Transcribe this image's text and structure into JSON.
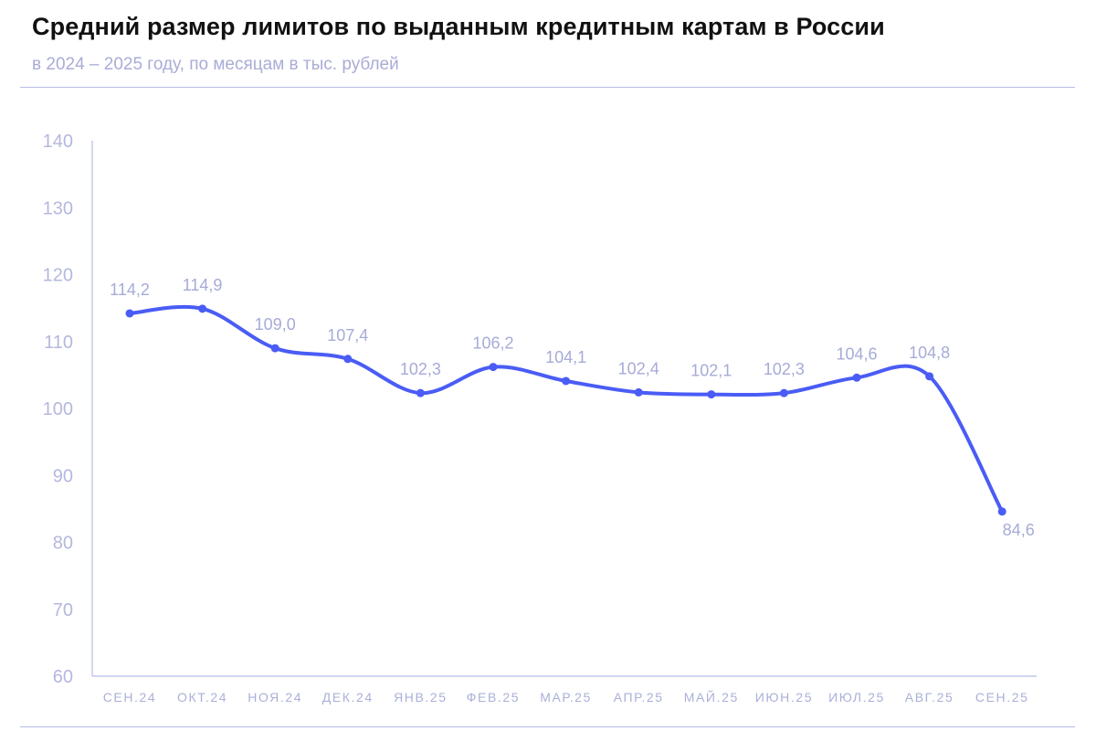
{
  "header": {
    "title": "Средний размер лимитов по выданным кредитным картам в России",
    "subtitle": "в 2024 – 2025 году, по месяцам в тыс. рублей"
  },
  "colors": {
    "line": "#4a5cf5",
    "axis": "#b7bbe6",
    "tick_text": "#b4b8de",
    "data_label": "#a6abd8"
  },
  "chart_data": {
    "type": "line",
    "title": "Средний размер лимитов по выданным кредитным картам в России",
    "subtitle": "в 2024 – 2025 году, по месяцам в тыс. рублей",
    "categories": [
      "СЕН.24",
      "ОКТ.24",
      "НОЯ.24",
      "ДЕК.24",
      "ЯНВ.25",
      "ФЕВ.25",
      "МАР.25",
      "АПР.25",
      "МАЙ.25",
      "ИЮН.25",
      "ИЮЛ.25",
      "АВГ.25",
      "СЕН.25"
    ],
    "values": [
      114.2,
      114.9,
      109.0,
      107.4,
      102.3,
      106.2,
      104.1,
      102.4,
      102.1,
      102.3,
      104.6,
      104.8,
      84.6
    ],
    "data_labels": [
      "114,2",
      "114,9",
      "109,0",
      "107,4",
      "102,3",
      "106,2",
      "104,1",
      "102,4",
      "102,1",
      "102,3",
      "104,6",
      "104,8",
      "84,6"
    ],
    "yticks": [
      "60",
      "70",
      "80",
      "90",
      "100",
      "110",
      "120",
      "130",
      "140"
    ],
    "ylim": [
      60,
      140
    ],
    "smooth": true,
    "grid": false,
    "legend": false
  }
}
